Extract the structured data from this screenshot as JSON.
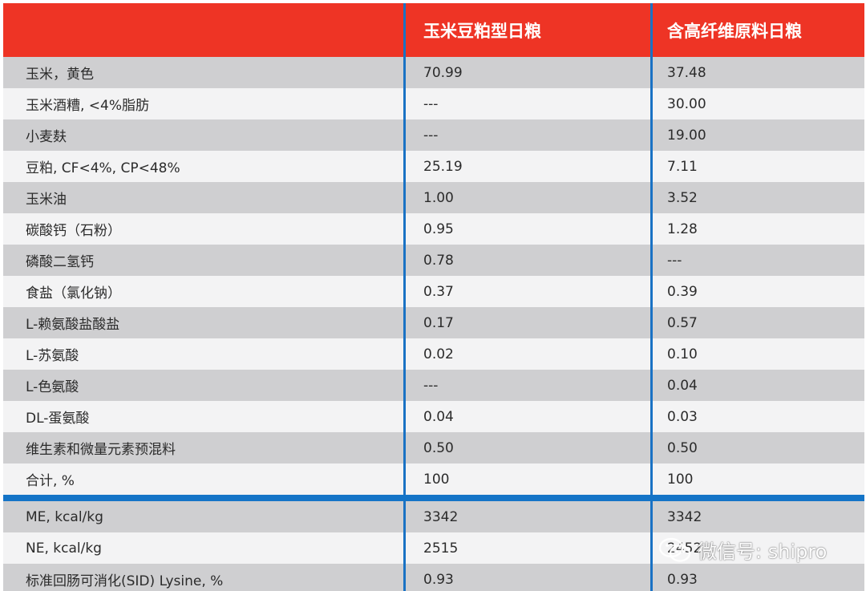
{
  "table": {
    "headers": [
      "",
      "玉米豆粕型日粮",
      "含高纤维原料日粮"
    ],
    "rows": [
      [
        "玉米，黄色",
        "70.99",
        "37.48"
      ],
      [
        "玉米酒糟, <4%脂肪",
        "---",
        "30.00"
      ],
      [
        "小麦麸",
        "---",
        "19.00"
      ],
      [
        "豆粕, CF<4%, CP<48%",
        "25.19",
        "7.11"
      ],
      [
        "玉米油",
        "1.00",
        "3.52"
      ],
      [
        "碳酸钙（石粉）",
        "0.95",
        "1.28"
      ],
      [
        "磷酸二氢钙",
        "0.78",
        "---"
      ],
      [
        "食盐（氯化钠）",
        "0.37",
        "0.39"
      ],
      [
        "L-赖氨酸盐酸盐",
        "0.17",
        "0.57"
      ],
      [
        "L-苏氨酸",
        "0.02",
        "0.10"
      ],
      [
        "L-色氨酸",
        "---",
        "0.04"
      ],
      [
        "DL-蛋氨酸",
        "0.04",
        "0.03"
      ],
      [
        "维生素和微量元素预混料",
        "0.50",
        "0.50"
      ],
      [
        "合计, %",
        "100",
        "100"
      ]
    ],
    "energy_rows": [
      [
        "ME, kcal/kg",
        "3342",
        "3342"
      ],
      [
        "NE, kcal/kg",
        "2515",
        "2452"
      ],
      [
        "标准回肠可消化(SID) Lysine, %",
        "0.93",
        "0.93"
      ]
    ]
  },
  "watermark": {
    "text": "微信号: shipro",
    "icon": "wechat-icon"
  },
  "colors": {
    "header_bg": "#ee3425",
    "divider": "#1a72c4",
    "row_dark": "#cfcfd1",
    "row_light": "#f3f3f4"
  }
}
